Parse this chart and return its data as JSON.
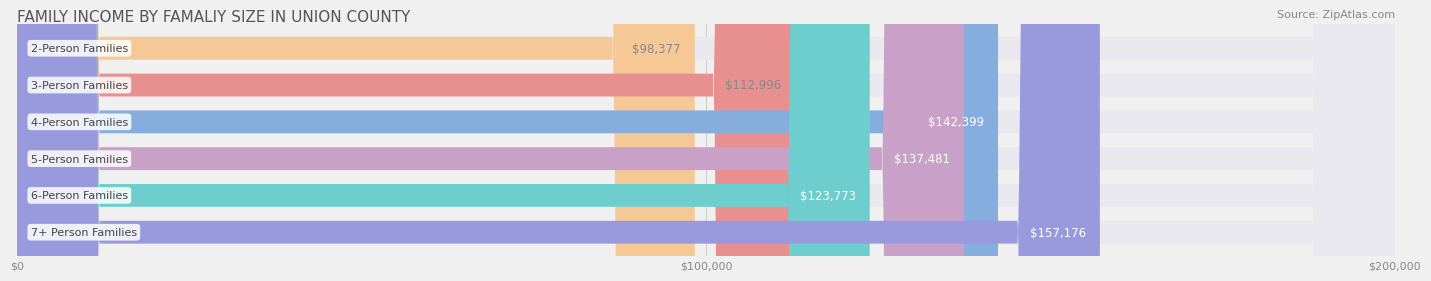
{
  "title": "FAMILY INCOME BY FAMALIY SIZE IN UNION COUNTY",
  "source": "Source: ZipAtlas.com",
  "categories": [
    "2-Person Families",
    "3-Person Families",
    "4-Person Families",
    "5-Person Families",
    "6-Person Families",
    "7+ Person Families"
  ],
  "values": [
    98377,
    112996,
    142399,
    137481,
    123773,
    157176
  ],
  "bar_colors": [
    "#f5c896",
    "#e89090",
    "#85aede",
    "#c9a0c8",
    "#6ecece",
    "#9999dd"
  ],
  "label_colors": [
    "#888888",
    "#888888",
    "#ffffff",
    "#ffffff",
    "#ffffff",
    "#ffffff"
  ],
  "bg_color": "#f0f0f0",
  "bar_bg_color": "#e8e8ee",
  "xlim": [
    0,
    200000
  ],
  "xticks": [
    0,
    100000,
    200000
  ],
  "xtick_labels": [
    "$0",
    "$100,000",
    "$200,000"
  ],
  "title_fontsize": 11,
  "source_fontsize": 8,
  "bar_height": 0.62,
  "bar_label_fontsize": 8.5,
  "category_fontsize": 8
}
